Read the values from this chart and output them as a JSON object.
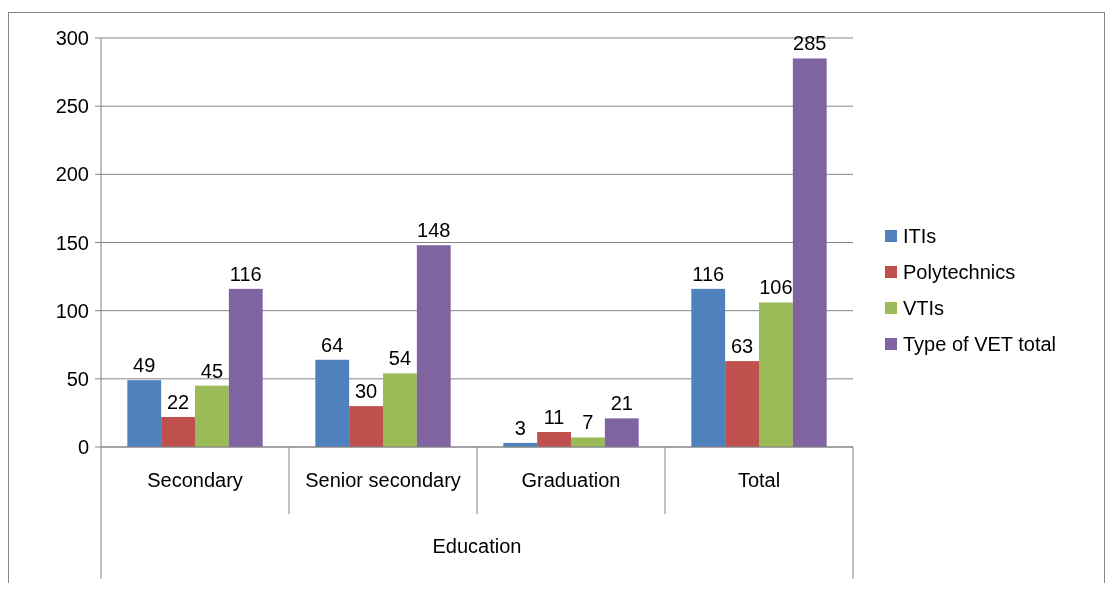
{
  "chart_data": {
    "type": "bar",
    "xlabel": "Education",
    "categories": [
      "Secondary",
      "Senior secondary",
      "Graduation",
      "Total"
    ],
    "series": [
      {
        "name": "ITIs",
        "color": "#4f81bd",
        "values": [
          49,
          64,
          3,
          116
        ]
      },
      {
        "name": "Polytechnics",
        "color": "#c0504d",
        "values": [
          22,
          30,
          11,
          63
        ]
      },
      {
        "name": "VTIs",
        "color": "#9bbb59",
        "values": [
          45,
          54,
          7,
          106
        ]
      },
      {
        "name": "Type of VET total",
        "color": "#8064a2",
        "values": [
          116,
          148,
          21,
          285
        ]
      }
    ],
    "ylim": [
      0,
      300
    ],
    "yticks": [
      0,
      50,
      100,
      150,
      200,
      250,
      300
    ],
    "grid": "y",
    "legend": "right",
    "data_labels": true
  }
}
